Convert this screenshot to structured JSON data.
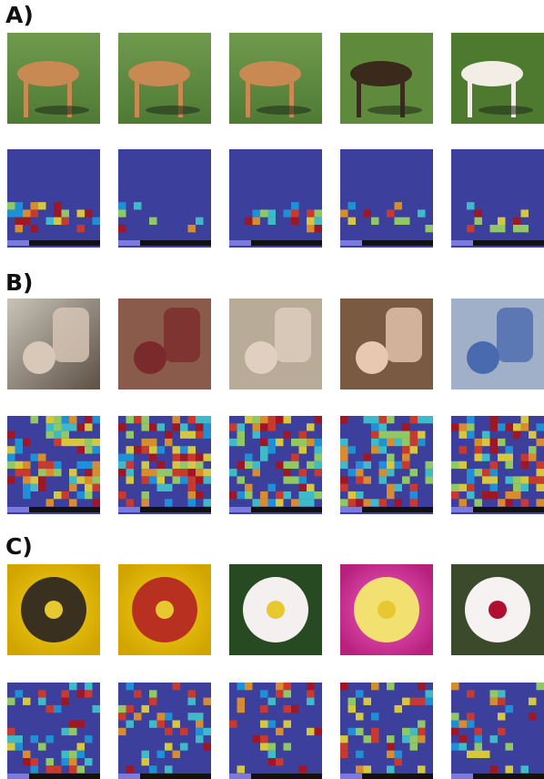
{
  "panels": [
    {
      "label": "A)"
    },
    {
      "label": "B)"
    },
    {
      "label": "C)"
    }
  ]
}
